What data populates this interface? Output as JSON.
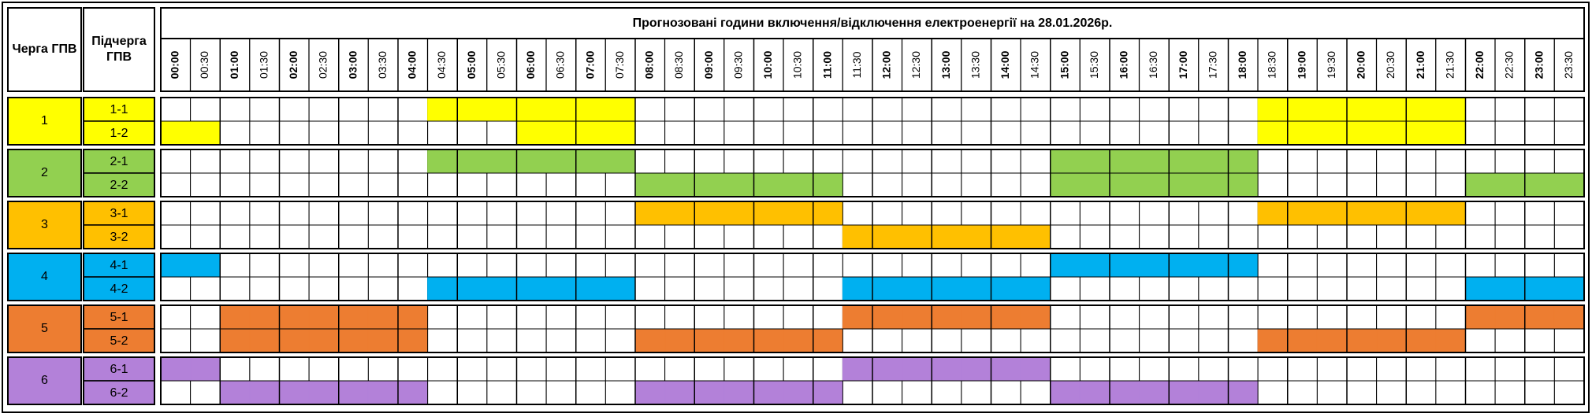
{
  "header": {
    "group": "Черга ГПВ",
    "subgroup": "Підчерга ГПВ",
    "title": "Прогнозовані години включення/відключення електроенергії на 28.01.2026р.",
    "times": [
      "00:00",
      "00:30",
      "01:00",
      "01:30",
      "02:00",
      "02:30",
      "03:00",
      "03:30",
      "04:00",
      "04:30",
      "05:00",
      "05:30",
      "06:00",
      "06:30",
      "07:00",
      "07:30",
      "08:00",
      "08:30",
      "09:00",
      "09:30",
      "10:00",
      "10:30",
      "11:00",
      "11:30",
      "12:00",
      "12:30",
      "13:00",
      "13:30",
      "14:00",
      "14:30",
      "15:00",
      "15:30",
      "16:00",
      "16:30",
      "17:00",
      "17:30",
      "18:00",
      "18:30",
      "19:00",
      "19:30",
      "20:00",
      "20:30",
      "21:00",
      "21:30",
      "22:00",
      "22:30",
      "23:00",
      "23:30"
    ]
  },
  "groups": [
    {
      "label": "1",
      "color": "#ffff00",
      "subgroups": [
        {
          "label": "1-1",
          "slots": [
            0,
            0,
            0,
            0,
            0,
            0,
            0,
            0,
            0,
            1,
            1,
            1,
            1,
            1,
            1,
            1,
            0,
            0,
            0,
            0,
            0,
            0,
            0,
            0,
            0,
            0,
            0,
            0,
            0,
            0,
            0,
            0,
            0,
            0,
            0,
            0,
            0,
            1,
            1,
            1,
            1,
            1,
            1,
            1,
            0,
            0,
            0,
            0
          ]
        },
        {
          "label": "1-2",
          "slots": [
            1,
            1,
            0,
            0,
            0,
            0,
            0,
            0,
            0,
            0,
            0,
            0,
            1,
            1,
            1,
            1,
            0,
            0,
            0,
            0,
            0,
            0,
            0,
            0,
            0,
            0,
            0,
            0,
            0,
            0,
            0,
            0,
            0,
            0,
            0,
            0,
            0,
            1,
            1,
            1,
            1,
            1,
            1,
            1,
            0,
            0,
            0,
            0
          ]
        }
      ]
    },
    {
      "label": "2",
      "color": "#92d050",
      "subgroups": [
        {
          "label": "2-1",
          "slots": [
            0,
            0,
            0,
            0,
            0,
            0,
            0,
            0,
            0,
            1,
            1,
            1,
            1,
            1,
            1,
            1,
            0,
            0,
            0,
            0,
            0,
            0,
            0,
            0,
            0,
            0,
            0,
            0,
            0,
            0,
            1,
            1,
            1,
            1,
            1,
            1,
            1,
            0,
            0,
            0,
            0,
            0,
            0,
            0,
            0,
            0,
            0,
            0
          ]
        },
        {
          "label": "2-2",
          "slots": [
            0,
            0,
            0,
            0,
            0,
            0,
            0,
            0,
            0,
            0,
            0,
            0,
            0,
            0,
            0,
            0,
            1,
            1,
            1,
            1,
            1,
            1,
            1,
            0,
            0,
            0,
            0,
            0,
            0,
            0,
            1,
            1,
            1,
            1,
            1,
            1,
            1,
            0,
            0,
            0,
            0,
            0,
            0,
            0,
            1,
            1,
            1,
            1
          ]
        }
      ]
    },
    {
      "label": "3",
      "color": "#ffc000",
      "subgroups": [
        {
          "label": "3-1",
          "slots": [
            0,
            0,
            0,
            0,
            0,
            0,
            0,
            0,
            0,
            0,
            0,
            0,
            0,
            0,
            0,
            0,
            1,
            1,
            1,
            1,
            1,
            1,
            1,
            0,
            0,
            0,
            0,
            0,
            0,
            0,
            0,
            0,
            0,
            0,
            0,
            0,
            0,
            1,
            1,
            1,
            1,
            1,
            1,
            1,
            0,
            0,
            0,
            0
          ]
        },
        {
          "label": "3-2",
          "slots": [
            0,
            0,
            0,
            0,
            0,
            0,
            0,
            0,
            0,
            0,
            0,
            0,
            0,
            0,
            0,
            0,
            0,
            0,
            0,
            0,
            0,
            0,
            0,
            1,
            1,
            1,
            1,
            1,
            1,
            1,
            0,
            0,
            0,
            0,
            0,
            0,
            0,
            0,
            0,
            0,
            0,
            0,
            0,
            0,
            0,
            0,
            0,
            0
          ]
        }
      ]
    },
    {
      "label": "4",
      "color": "#00b0f0",
      "subgroups": [
        {
          "label": "4-1",
          "slots": [
            1,
            1,
            0,
            0,
            0,
            0,
            0,
            0,
            0,
            0,
            0,
            0,
            0,
            0,
            0,
            0,
            0,
            0,
            0,
            0,
            0,
            0,
            0,
            0,
            0,
            0,
            0,
            0,
            0,
            0,
            1,
            1,
            1,
            1,
            1,
            1,
            1,
            0,
            0,
            0,
            0,
            0,
            0,
            0,
            0,
            0,
            0,
            0
          ]
        },
        {
          "label": "4-2",
          "slots": [
            0,
            0,
            0,
            0,
            0,
            0,
            0,
            0,
            0,
            1,
            1,
            1,
            1,
            1,
            1,
            1,
            0,
            0,
            0,
            0,
            0,
            0,
            0,
            1,
            1,
            1,
            1,
            1,
            1,
            1,
            0,
            0,
            0,
            0,
            0,
            0,
            0,
            0,
            0,
            0,
            0,
            0,
            0,
            0,
            1,
            1,
            1,
            1
          ]
        }
      ]
    },
    {
      "label": "5",
      "color": "#ed7d31",
      "subgroups": [
        {
          "label": "5-1",
          "slots": [
            0,
            0,
            1,
            1,
            1,
            1,
            1,
            1,
            1,
            0,
            0,
            0,
            0,
            0,
            0,
            0,
            0,
            0,
            0,
            0,
            0,
            0,
            0,
            1,
            1,
            1,
            1,
            1,
            1,
            1,
            0,
            0,
            0,
            0,
            0,
            0,
            0,
            0,
            0,
            0,
            0,
            0,
            0,
            0,
            1,
            1,
            1,
            1
          ]
        },
        {
          "label": "5-2",
          "slots": [
            0,
            0,
            1,
            1,
            1,
            1,
            1,
            1,
            1,
            0,
            0,
            0,
            0,
            0,
            0,
            0,
            1,
            1,
            1,
            1,
            1,
            1,
            1,
            0,
            0,
            0,
            0,
            0,
            0,
            0,
            0,
            0,
            0,
            0,
            0,
            0,
            0,
            1,
            1,
            1,
            1,
            1,
            1,
            1,
            0,
            0,
            0,
            0
          ]
        }
      ]
    },
    {
      "label": "6",
      "color": "#b381d9",
      "subgroups": [
        {
          "label": "6-1",
          "slots": [
            1,
            1,
            0,
            0,
            0,
            0,
            0,
            0,
            0,
            0,
            0,
            0,
            0,
            0,
            0,
            0,
            0,
            0,
            0,
            0,
            0,
            0,
            0,
            1,
            1,
            1,
            1,
            1,
            1,
            1,
            0,
            0,
            0,
            0,
            0,
            0,
            0,
            0,
            0,
            0,
            0,
            0,
            0,
            0,
            0,
            0,
            0,
            0
          ]
        },
        {
          "label": "6-2",
          "slots": [
            0,
            0,
            1,
            1,
            1,
            1,
            1,
            1,
            1,
            0,
            0,
            0,
            0,
            0,
            0,
            0,
            1,
            1,
            1,
            1,
            1,
            1,
            1,
            0,
            0,
            0,
            0,
            0,
            0,
            0,
            1,
            1,
            1,
            1,
            1,
            1,
            1,
            0,
            0,
            0,
            0,
            0,
            0,
            0,
            0,
            0,
            0,
            0
          ]
        }
      ]
    }
  ]
}
